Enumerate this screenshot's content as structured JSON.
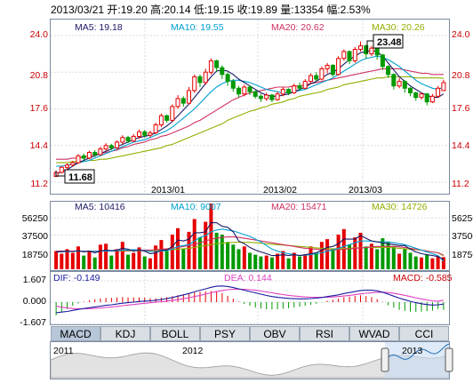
{
  "header": {
    "date": "2013/03/21",
    "open": "开:19.20",
    "high": "高:20.14",
    "low": "低:19.15",
    "close": "收:19.89",
    "volume": "量:13354",
    "change": "幅:2.53%"
  },
  "price_panel": {
    "ma_labels": [
      "MA5: 19.18",
      "MA10: 19.55",
      "MA20: 20.62",
      "MA30: 20.26"
    ],
    "y_ticks": [
      "24.0",
      "20.8",
      "17.6",
      "14.4",
      "11.2"
    ],
    "x_ticks": [
      "2013/01",
      "2013/02",
      "2013/03"
    ],
    "max_label": "23.48",
    "min_label": "11.68"
  },
  "volume_panel": {
    "ma_labels": [
      "MA5: 10416",
      "MA10: 9007",
      "MA20: 15471",
      "MA30: 14726"
    ],
    "y_ticks": [
      "56250",
      "37500",
      "18750"
    ]
  },
  "macd_panel": {
    "dif": "DIF: -0.149",
    "dea": "DEA: 0.144",
    "macd": "MACD: -0.585",
    "y_ticks": [
      "1.607",
      "0.000",
      "-1.607"
    ]
  },
  "tabs": [
    "MACD",
    "KDJ",
    "BOLL",
    "PSY",
    "OBV",
    "RSI",
    "WVAD",
    "CCI"
  ],
  "navigator": {
    "labels": [
      "2011",
      "2012",
      "2013"
    ]
  },
  "colors": {
    "up": "#e60000",
    "down": "#009900",
    "ma5": "#1a1a66",
    "ma10": "#00a0d0",
    "ma20": "#d03060",
    "ma30": "#90b000",
    "dif": "#1a1aa0",
    "dea": "#e040c0"
  },
  "chart_data": {
    "type": "candlestick",
    "y_range": [
      11.2,
      24.0
    ],
    "volume_range": [
      0,
      75000
    ],
    "macd_range": [
      -1.607,
      1.607
    ],
    "candles": [
      [
        11.7,
        12.05,
        11.68,
        12.15
      ],
      [
        12.05,
        12.5,
        11.95,
        12.6
      ],
      [
        12.5,
        12.7,
        12.3,
        12.85
      ],
      [
        12.7,
        12.9,
        12.55,
        13.05
      ],
      [
        12.9,
        13.5,
        12.8,
        13.65
      ],
      [
        13.5,
        13.3,
        13.1,
        13.7
      ],
      [
        13.3,
        13.8,
        13.2,
        13.95
      ],
      [
        13.8,
        13.6,
        13.4,
        14.0
      ],
      [
        13.6,
        14.1,
        13.5,
        14.3
      ],
      [
        14.1,
        14.4,
        13.95,
        14.6
      ],
      [
        14.4,
        14.2,
        14.0,
        14.55
      ],
      [
        14.2,
        14.7,
        14.1,
        14.85
      ],
      [
        14.7,
        15.1,
        14.5,
        15.3
      ],
      [
        15.1,
        14.8,
        14.6,
        15.25
      ],
      [
        14.8,
        15.2,
        14.7,
        15.4
      ],
      [
        15.2,
        15.6,
        15.0,
        15.8
      ],
      [
        15.6,
        15.3,
        15.1,
        15.75
      ],
      [
        15.3,
        15.5,
        15.1,
        15.7
      ],
      [
        15.5,
        16.2,
        15.4,
        16.4
      ],
      [
        16.2,
        17.0,
        16.0,
        17.2
      ],
      [
        17.0,
        16.6,
        16.4,
        17.1
      ],
      [
        16.6,
        17.8,
        16.5,
        18.0
      ],
      [
        17.8,
        18.5,
        17.6,
        18.8
      ],
      [
        18.5,
        18.1,
        17.8,
        18.7
      ],
      [
        18.1,
        19.2,
        18.0,
        19.5
      ],
      [
        19.2,
        20.4,
        19.0,
        20.6
      ],
      [
        20.4,
        19.9,
        19.5,
        20.6
      ],
      [
        19.9,
        20.8,
        19.7,
        21.1
      ],
      [
        20.8,
        21.8,
        20.6,
        22.0
      ],
      [
        21.8,
        21.2,
        20.8,
        21.9
      ],
      [
        21.2,
        20.6,
        20.2,
        21.4
      ],
      [
        20.6,
        20.0,
        19.6,
        20.8
      ],
      [
        20.0,
        19.4,
        19.1,
        20.2
      ],
      [
        19.4,
        18.9,
        18.6,
        19.6
      ],
      [
        18.9,
        19.5,
        18.7,
        19.7
      ],
      [
        19.5,
        19.1,
        18.8,
        19.6
      ],
      [
        19.1,
        18.7,
        18.5,
        19.2
      ],
      [
        18.7,
        18.5,
        18.2,
        18.9
      ],
      [
        18.5,
        18.8,
        18.3,
        19.0
      ],
      [
        18.8,
        18.4,
        18.2,
        18.9
      ],
      [
        18.4,
        18.9,
        18.3,
        19.1
      ],
      [
        18.9,
        19.3,
        18.7,
        19.5
      ],
      [
        19.3,
        19.0,
        18.8,
        19.4
      ],
      [
        19.0,
        19.6,
        18.9,
        19.8
      ],
      [
        19.6,
        19.4,
        19.2,
        19.9
      ],
      [
        19.4,
        20.0,
        19.3,
        20.2
      ],
      [
        20.0,
        20.5,
        19.8,
        20.7
      ],
      [
        20.5,
        20.2,
        20.0,
        20.8
      ],
      [
        20.2,
        21.1,
        20.1,
        21.3
      ],
      [
        21.1,
        21.4,
        20.7,
        21.6
      ],
      [
        21.4,
        20.6,
        20.4,
        21.5
      ],
      [
        20.6,
        22.0,
        20.5,
        22.2
      ],
      [
        22.0,
        22.6,
        21.8,
        22.8
      ],
      [
        22.6,
        21.8,
        21.5,
        22.7
      ],
      [
        21.8,
        22.8,
        21.6,
        23.0
      ],
      [
        22.8,
        23.1,
        22.6,
        23.48
      ],
      [
        23.1,
        22.4,
        22.0,
        23.2
      ],
      [
        22.4,
        22.9,
        22.2,
        23.1
      ],
      [
        22.9,
        22.3,
        21.9,
        23.0
      ],
      [
        22.3,
        21.3,
        21.0,
        22.4
      ],
      [
        21.3,
        20.6,
        20.3,
        21.4
      ],
      [
        20.6,
        19.6,
        19.3,
        20.7
      ],
      [
        19.6,
        20.0,
        19.4,
        20.3
      ],
      [
        20.0,
        19.4,
        19.0,
        20.1
      ],
      [
        19.4,
        19.0,
        18.7,
        19.5
      ],
      [
        19.0,
        18.6,
        18.3,
        19.1
      ],
      [
        18.6,
        18.9,
        18.4,
        19.0
      ],
      [
        18.9,
        18.2,
        17.9,
        19.0
      ],
      [
        18.2,
        18.7,
        18.1,
        18.9
      ],
      [
        18.7,
        19.4,
        18.6,
        19.6
      ],
      [
        19.2,
        19.89,
        19.15,
        20.14
      ]
    ],
    "ma5": [
      11.9,
      12.1,
      12.3,
      12.6,
      12.9,
      13.1,
      13.3,
      13.5,
      13.7,
      13.9,
      14.1,
      14.3,
      14.5,
      14.7,
      14.9,
      15.1,
      15.2,
      15.3,
      15.5,
      15.8,
      16.1,
      16.5,
      17.0,
      17.5,
      18.0,
      18.6,
      19.2,
      19.8,
      20.4,
      20.9,
      21.0,
      20.9,
      20.6,
      20.2,
      19.9,
      19.6,
      19.3,
      19.0,
      18.8,
      18.7,
      18.7,
      18.8,
      18.9,
      19.1,
      19.3,
      19.5,
      19.8,
      20.0,
      20.3,
      20.6,
      20.8,
      21.1,
      21.5,
      21.9,
      22.2,
      22.5,
      22.6,
      22.7,
      22.6,
      22.2,
      21.6,
      21.0,
      20.4,
      20.0,
      19.6,
      19.3,
      19.0,
      18.8,
      18.6,
      18.6,
      18.9
    ],
    "ma10": [
      12.6,
      12.6,
      12.7,
      12.8,
      12.9,
      13.0,
      13.1,
      13.3,
      13.5,
      13.7,
      13.9,
      14.1,
      14.3,
      14.5,
      14.7,
      14.8,
      14.9,
      15.1,
      15.3,
      15.5,
      15.7,
      16.0,
      16.4,
      16.8,
      17.2,
      17.6,
      18.1,
      18.6,
      19.1,
      19.5,
      19.8,
      20.0,
      20.1,
      20.1,
      20.0,
      19.9,
      19.7,
      19.5,
      19.3,
      19.2,
      19.1,
      19.0,
      19.0,
      19.1,
      19.2,
      19.3,
      19.5,
      19.7,
      19.9,
      20.1,
      20.3,
      20.6,
      20.9,
      21.2,
      21.5,
      21.8,
      22.0,
      22.1,
      22.2,
      22.1,
      21.9,
      21.6,
      21.3,
      20.9,
      20.5,
      20.1,
      19.8,
      19.6,
      19.4,
      19.3,
      19.5
    ],
    "ma20": [
      13.2,
      13.2,
      13.2,
      13.3,
      13.3,
      13.4,
      13.5,
      13.6,
      13.7,
      13.8,
      13.9,
      14.0,
      14.2,
      14.3,
      14.5,
      14.6,
      14.7,
      14.9,
      15.0,
      15.2,
      15.3,
      15.5,
      15.7,
      15.9,
      16.1,
      16.4,
      16.6,
      16.9,
      17.2,
      17.5,
      17.8,
      18.1,
      18.4,
      18.6,
      18.8,
      19.0,
      19.1,
      19.2,
      19.3,
      19.4,
      19.5,
      19.5,
      19.5,
      19.6,
      19.6,
      19.7,
      19.8,
      19.9,
      20.0,
      20.1,
      20.2,
      20.3,
      20.4,
      20.5,
      20.6,
      20.7,
      20.8,
      20.9,
      21.0,
      21.1,
      21.1,
      21.1,
      21.1,
      21.0,
      20.9,
      20.8,
      20.7,
      20.7,
      20.6,
      20.6,
      20.6
    ],
    "ma30": [
      12.9,
      12.9,
      12.9,
      13.0,
      13.0,
      13.0,
      13.1,
      13.1,
      13.2,
      13.2,
      13.3,
      13.4,
      13.5,
      13.6,
      13.7,
      13.8,
      13.9,
      14.0,
      14.1,
      14.2,
      14.4,
      14.5,
      14.7,
      14.9,
      15.1,
      15.3,
      15.5,
      15.7,
      15.9,
      16.1,
      16.3,
      16.6,
      16.8,
      17.0,
      17.2,
      17.4,
      17.5,
      17.7,
      17.8,
      18.0,
      18.1,
      18.2,
      18.4,
      18.5,
      18.7,
      18.8,
      18.9,
      19.0,
      19.1,
      19.3,
      19.4,
      19.5,
      19.7,
      19.8,
      19.9,
      20.0,
      20.1,
      20.2,
      20.3,
      20.3,
      20.4,
      20.4,
      20.4,
      20.4,
      20.4,
      20.3,
      20.3,
      20.3,
      20.3,
      20.3,
      20.26
    ],
    "volume": [
      20000,
      17000,
      22000,
      18000,
      25000,
      15000,
      20000,
      13000,
      27000,
      28000,
      15000,
      22000,
      30000,
      16000,
      18000,
      24000,
      14000,
      12000,
      26000,
      32000,
      20000,
      38000,
      45000,
      22000,
      41000,
      55000,
      35000,
      52000,
      72000,
      40000,
      38000,
      30000,
      27000,
      22000,
      25000,
      18000,
      16000,
      14000,
      15000,
      13000,
      17000,
      20000,
      12000,
      18000,
      14000,
      16000,
      25000,
      18000,
      30000,
      33000,
      22000,
      38000,
      44000,
      27000,
      35000,
      40000,
      25000,
      28000,
      22000,
      34000,
      30000,
      25000,
      17000,
      22000,
      18000,
      14000,
      13000,
      16000,
      12000,
      14000,
      13354
    ],
    "vol_ma5": [
      19000,
      19500,
      20000,
      19500,
      20500,
      19000,
      20000,
      18000,
      20000,
      21000,
      20500,
      21000,
      23000,
      22000,
      20000,
      21000,
      20000,
      17000,
      18000,
      21000,
      21000,
      25000,
      32000,
      31000,
      33000,
      40000,
      40000,
      41000,
      51000,
      51000,
      47000,
      46000,
      41000,
      31000,
      28000,
      24000,
      21000,
      19000,
      17000,
      15000,
      15000,
      16000,
      15000,
      16000,
      15000,
      16000,
      17000,
      18000,
      21000,
      24000,
      25000,
      28000,
      33000,
      33000,
      33000,
      37000,
      34000,
      31000,
      30000,
      29000,
      28000,
      27000,
      26000,
      26000,
      22000,
      19000,
      17000,
      16000,
      15000,
      14000,
      10416
    ],
    "vol_ma10": [
      19000,
      19000,
      19500,
      19500,
      20000,
      19500,
      20000,
      19500,
      20000,
      20000,
      20000,
      20500,
      21000,
      21000,
      21500,
      21000,
      20500,
      19500,
      19500,
      20000,
      20500,
      22000,
      25000,
      26000,
      27000,
      31000,
      35000,
      37000,
      41000,
      43000,
      44000,
      43000,
      42000,
      40000,
      38000,
      36000,
      33000,
      30000,
      26000,
      22000,
      20000,
      18000,
      17000,
      16000,
      15000,
      15500,
      16000,
      17000,
      18000,
      20000,
      21000,
      23000,
      25000,
      27000,
      29000,
      31000,
      31000,
      31000,
      30000,
      30000,
      30000,
      29000,
      28000,
      27000,
      25000,
      23000,
      21000,
      19000,
      17000,
      15000,
      9007
    ],
    "vol_ma20": [
      20000,
      20000,
      20000,
      20000,
      20000,
      20000,
      20000,
      20000,
      20000,
      20000,
      20000,
      20000,
      20500,
      20500,
      21000,
      21000,
      21000,
      21000,
      21500,
      22000,
      22500,
      23000,
      24000,
      25000,
      26000,
      27000,
      29000,
      31000,
      33000,
      34000,
      35000,
      35500,
      35500,
      35000,
      34000,
      33000,
      32000,
      31000,
      30000,
      29000,
      28000,
      27000,
      26000,
      25000,
      24000,
      23000,
      22500,
      22000,
      21500,
      21000,
      21000,
      21500,
      22000,
      22500,
      23000,
      23500,
      24000,
      24500,
      25000,
      25000,
      25000,
      25000,
      24500,
      24000,
      23000,
      22000,
      21000,
      20000,
      19000,
      18000,
      15471
    ],
    "vol_ma30": [
      20000,
      20000,
      20000,
      20000,
      20000,
      20000,
      20000,
      20000,
      20000,
      20000,
      20000,
      20000,
      20000,
      20000,
      20500,
      20500,
      20500,
      20500,
      21000,
      21000,
      21500,
      21500,
      22000,
      22500,
      23000,
      24000,
      25000,
      26000,
      27000,
      28000,
      28500,
      29000,
      29500,
      29500,
      29500,
      29500,
      29000,
      28500,
      28000,
      27500,
      27000,
      26500,
      26000,
      25500,
      25000,
      24500,
      24000,
      23500,
      23000,
      22500,
      22500,
      22500,
      23000,
      23000,
      23500,
      23500,
      24000,
      24000,
      24000,
      24000,
      24000,
      23500,
      23000,
      22500,
      22000,
      21500,
      21000,
      20000,
      19000,
      18000,
      14726
    ],
    "dif": [
      -0.8,
      -0.75,
      -0.7,
      -0.62,
      -0.55,
      -0.48,
      -0.42,
      -0.36,
      -0.3,
      -0.24,
      -0.2,
      -0.14,
      -0.08,
      -0.04,
      0.0,
      0.05,
      0.08,
      0.1,
      0.14,
      0.2,
      0.27,
      0.35,
      0.45,
      0.55,
      0.65,
      0.78,
      0.9,
      1.0,
      1.12,
      1.2,
      1.22,
      1.18,
      1.1,
      1.0,
      0.9,
      0.8,
      0.7,
      0.6,
      0.5,
      0.42,
      0.36,
      0.32,
      0.28,
      0.26,
      0.25,
      0.25,
      0.27,
      0.3,
      0.35,
      0.42,
      0.48,
      0.55,
      0.65,
      0.72,
      0.8,
      0.88,
      0.9,
      0.9,
      0.85,
      0.75,
      0.6,
      0.45,
      0.3,
      0.18,
      0.06,
      -0.04,
      -0.12,
      -0.18,
      -0.22,
      -0.2,
      -0.149
    ],
    "dea": [
      -0.3,
      -0.38,
      -0.44,
      -0.48,
      -0.5,
      -0.5,
      -0.49,
      -0.47,
      -0.44,
      -0.4,
      -0.36,
      -0.32,
      -0.27,
      -0.22,
      -0.18,
      -0.13,
      -0.09,
      -0.05,
      -0.01,
      0.03,
      0.08,
      0.13,
      0.19,
      0.26,
      0.33,
      0.42,
      0.51,
      0.6,
      0.7,
      0.8,
      0.88,
      0.94,
      0.97,
      0.98,
      0.97,
      0.94,
      0.9,
      0.84,
      0.77,
      0.7,
      0.63,
      0.57,
      0.51,
      0.46,
      0.42,
      0.39,
      0.37,
      0.36,
      0.36,
      0.37,
      0.39,
      0.42,
      0.46,
      0.51,
      0.56,
      0.62,
      0.67,
      0.71,
      0.74,
      0.74,
      0.72,
      0.66,
      0.59,
      0.51,
      0.42,
      0.33,
      0.24,
      0.16,
      0.1,
      0.06,
      0.144
    ]
  }
}
